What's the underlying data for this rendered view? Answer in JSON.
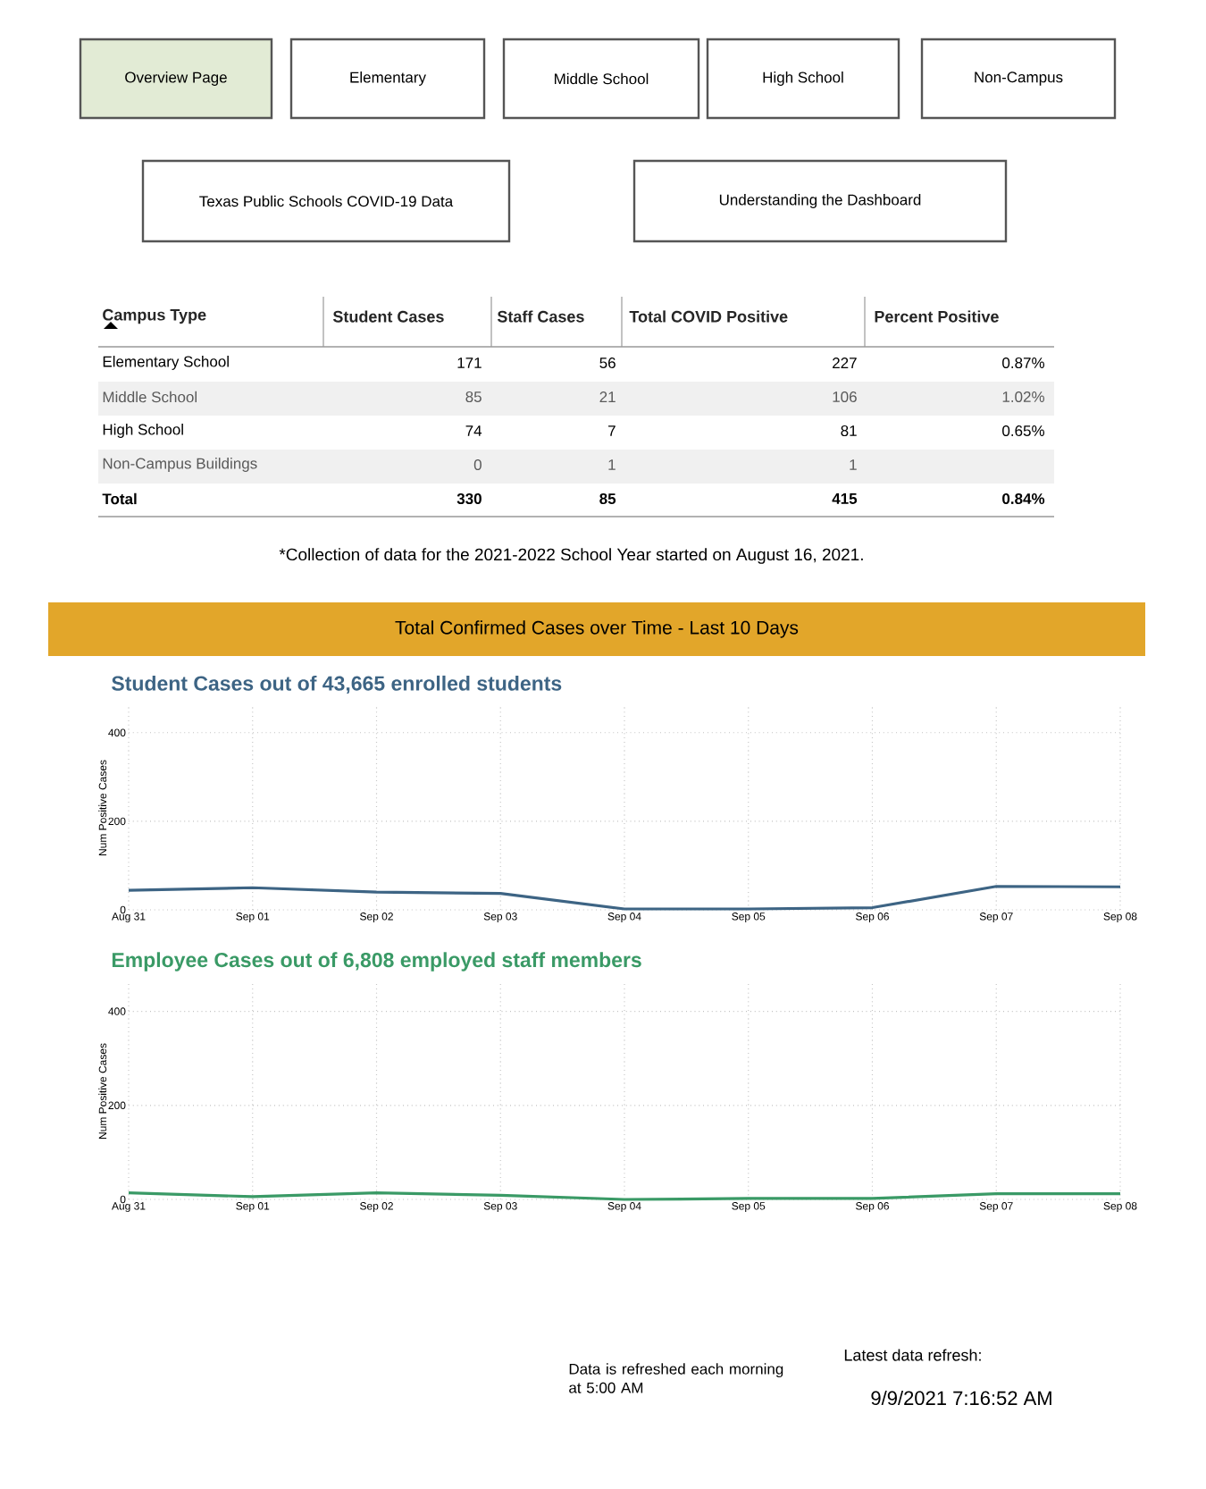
{
  "chart_data": [
    {
      "type": "other",
      "annotations": [
        "Overview Page",
        "Elementary",
        "Middle School",
        "High School",
        "Non-Campus",
        "Texas Public Schools COVID-19 Data",
        "Understanding the Dashboard",
        "Campus Type",
        "Student Cases",
        "Staff Cases",
        "Total COVID Positive",
        "Percent Positive",
        "Elementary School",
        "171",
        "56",
        "227",
        "0.87%",
        "Middle School",
        "85",
        "21",
        "106",
        "1.02%",
        "High School",
        "74",
        "7",
        "81",
        "0.65%",
        "Non-Campus Buildings",
        "0",
        "1",
        "1",
        null,
        "Total",
        "330",
        "85",
        "415",
        "0.84%",
        "*Collection of data for the 2021-2022 School Year started on August 16, 2021."
      ]
    },
    {
      "type": "line",
      "title": "Total Confirmed Cases over Time - Last 10 Days",
      "subtitle": "Student Cases out of 43,665 enrolled students",
      "ylabel": "Num Positive Cases",
      "categories": [
        "Aug 31",
        "Sep 01",
        "Sep 02",
        "Sep 03",
        "Sep 04",
        "Sep 05",
        "Sep 06",
        "Sep 07",
        "Sep 08"
      ],
      "series": [
        {
          "color": "#3d6484",
          "values": [
            44,
            50,
            40,
            37,
            2,
            2,
            5,
            53,
            52
          ]
        }
      ],
      "ylim": [
        0,
        460
      ],
      "yticks": [
        0,
        200,
        400
      ],
      "grid": true
    },
    {
      "type": "line",
      "subtitle": "Employee Cases out of 6,808 employed staff members",
      "ylabel": "Num Positive Cases",
      "categories": [
        "Aug 31",
        "Sep 01",
        "Sep 02",
        "Sep 03",
        "Sep 04",
        "Sep 05",
        "Sep 06",
        "Sep 07",
        "Sep 08"
      ],
      "series": [
        {
          "color": "#3a9a66",
          "values": [
            14,
            6,
            14,
            9,
            0,
            2,
            2,
            12,
            12
          ]
        }
      ],
      "ylim": [
        0,
        460
      ],
      "yticks": [
        0,
        200,
        400
      ],
      "grid": true,
      "annotations": [
        "Data is refreshed each morning at 5:00 AM",
        "Latest data refresh:",
        "9/9/2021 7:16:52 AM"
      ]
    }
  ]
}
